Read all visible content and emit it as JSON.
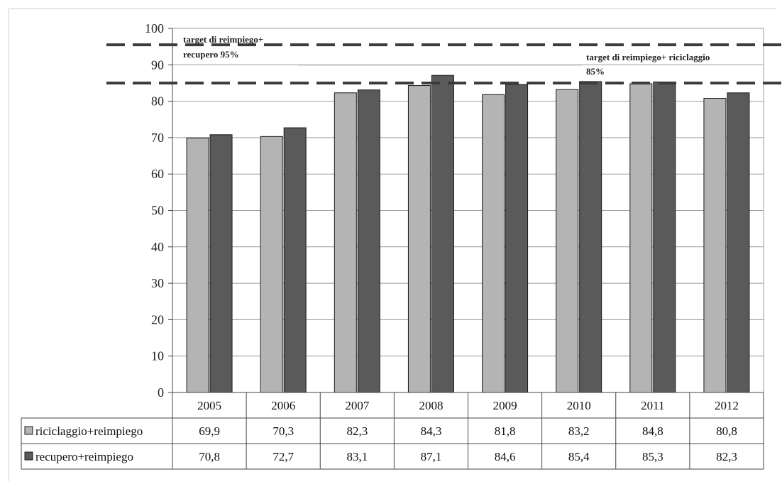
{
  "chart_data": {
    "type": "bar",
    "categories": [
      "2005",
      "2006",
      "2007",
      "2008",
      "2009",
      "2010",
      "2011",
      "2012"
    ],
    "series": [
      {
        "name": "riciclaggio+reimpiego",
        "values": [
          69.9,
          70.3,
          82.3,
          84.3,
          81.8,
          83.2,
          84.8,
          80.8
        ],
        "color": "#b4b4b4"
      },
      {
        "name": "recupero+reimpiego",
        "values": [
          70.8,
          72.7,
          83.1,
          87.1,
          84.6,
          85.4,
          85.3,
          82.3
        ],
        "color": "#5a5a5a"
      }
    ],
    "table_values": [
      [
        "69,9",
        "70,3",
        "82,3",
        "84,3",
        "81,8",
        "83,2",
        "84,8",
        "80,8"
      ],
      [
        "70,8",
        "72,7",
        "83,1",
        "87,1",
        "84,6",
        "85,4",
        "85,3",
        "82,3"
      ]
    ],
    "ylim": [
      0,
      100
    ],
    "yticks": [
      "0",
      "10",
      "20",
      "30",
      "40",
      "50",
      "60",
      "70",
      "80",
      "90",
      "100"
    ],
    "grid": true,
    "legend_placement": "data-table",
    "reference_lines": [
      {
        "value": 95.5,
        "label_lines": [
          "target di reimpiego+",
          "recupero 95%"
        ]
      },
      {
        "value": 85,
        "label_lines": [
          "target di reimpiego+ riciclaggio",
          "85%"
        ]
      }
    ]
  }
}
